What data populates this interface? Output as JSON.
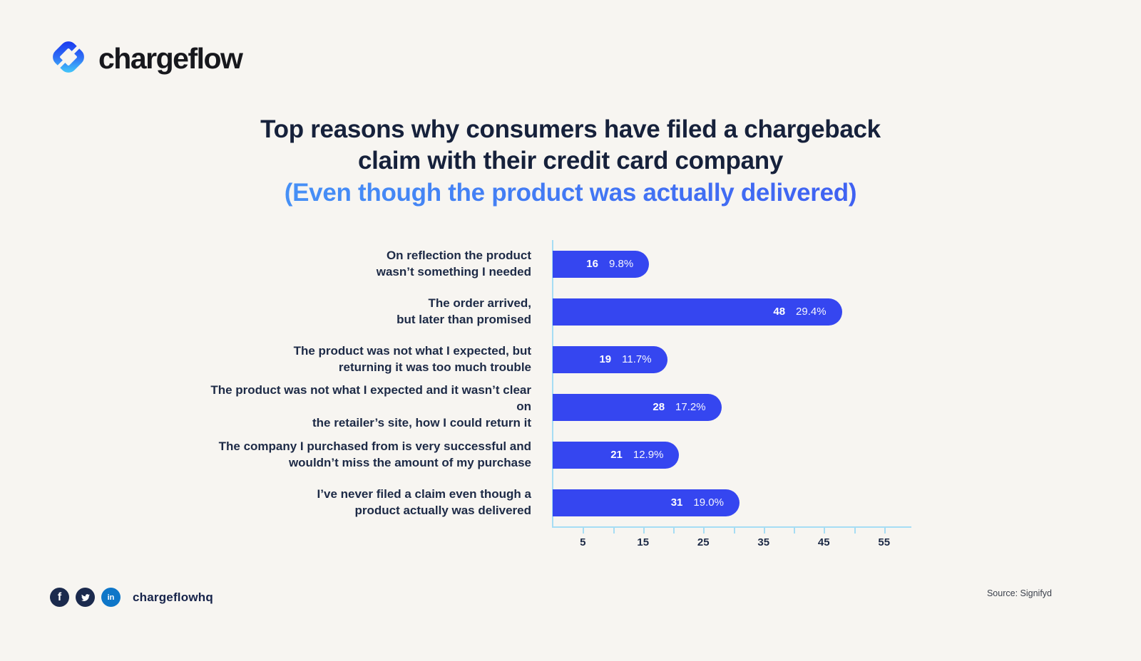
{
  "brand": {
    "name": "chargeflow"
  },
  "title": {
    "line1": "Top reasons why consumers have filed a chargeback",
    "line2": "claim with their credit card company",
    "line3": "(Even though the product was actually delivered)"
  },
  "chart_data": {
    "type": "bar",
    "orientation": "horizontal",
    "categories": [
      "On reflection the product\nwasn’t something I needed",
      "The order arrived,\nbut later than promised",
      "The product was not what I expected, but\nreturning it was too much trouble",
      "The product was not what I expected and it wasn’t clear on\nthe retailer’s site, how I could return it",
      "The company I purchased from is very successful and\nwouldn’t miss the amount of my purchase",
      "I’ve never filed a claim even though a\nproduct actually was delivered"
    ],
    "values": [
      16,
      48,
      19,
      28,
      21,
      31
    ],
    "percent_labels": [
      "9.8%",
      "29.4%",
      "11.7%",
      "17.2%",
      "12.9%",
      "19.0%"
    ],
    "x_ticks_labeled": [
      5,
      15,
      25,
      35,
      45,
      55
    ],
    "x_tick_step_minor": 5,
    "xlim": [
      0,
      59
    ],
    "grid": false,
    "legend": false,
    "bar_color": "#3546f0",
    "axis_color": "#a6ddf4"
  },
  "footer": {
    "handle": "chargeflowhq",
    "source": "Source: Signifyd",
    "social_icons": [
      "facebook-icon",
      "twitter-icon",
      "linkedin-icon"
    ]
  },
  "colors": {
    "background": "#f7f5f1",
    "title_text": "#16213b",
    "subtitle_gradient_start": "#49a8f8",
    "subtitle_gradient_end": "#3c49f0",
    "bar_blue": "#3546f0",
    "axis_light_blue": "#a6ddf4"
  }
}
